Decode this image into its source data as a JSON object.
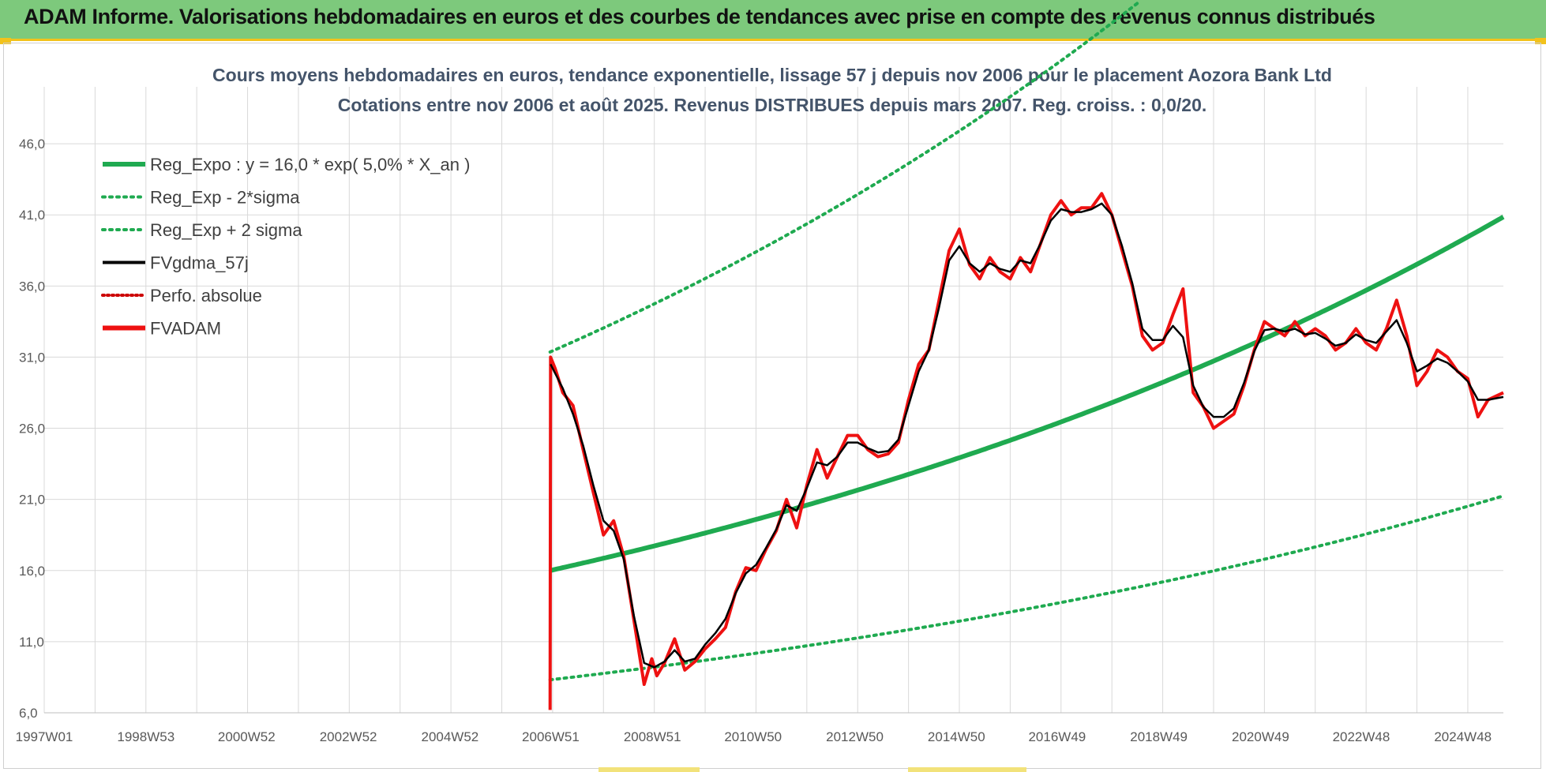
{
  "header": {
    "title": "ADAM Informe. Valorisations hebdomadaires en euros et des courbes de tendances avec prise en compte des revenus connus distribués"
  },
  "colors": {
    "banner": "#7dc97c",
    "accent": "#f2c21b",
    "reg_expo": "#1faa50",
    "fvgdma": "#000000",
    "fvadam": "#ee1111",
    "perfo": "#cc0000",
    "grid": "#d9d9d9"
  },
  "chart_data": {
    "type": "line",
    "subtitle_line1": "Cours moyens hebdomadaires en euros, tendance exponentielle, lissage 57 j depuis nov 2006 pour le placement Aozora Bank Ltd",
    "subtitle_line2": "Cotations entre nov 2006 et août 2025. Revenus DISTRIBUES depuis mars 2007. Reg. croiss. : 0,0/20.",
    "ylim": [
      6,
      50
    ],
    "y_ticks": [
      "6,0",
      "11,0",
      "16,0",
      "21,0",
      "26,0",
      "31,0",
      "36,0",
      "41,0",
      "46,0"
    ],
    "x_ticks": [
      "1997W01",
      "1998W53",
      "2000W52",
      "2002W52",
      "2004W52",
      "2006W51",
      "2008W51",
      "2010W50",
      "2012W50",
      "2014W50",
      "2016W49",
      "2018W49",
      "2020W49",
      "2022W48",
      "2024W48"
    ],
    "x_range": [
      1997.0,
      2025.7
    ],
    "grid": true,
    "legend_position": "top-left",
    "legend": [
      {
        "label": "Reg_Expo : y = 16,0 * exp( 5,0% *  X_an )",
        "color": "#1faa50",
        "style": "solid-thick"
      },
      {
        "label": "Reg_Exp - 2*sigma",
        "color": "#1faa50",
        "style": "dotted"
      },
      {
        "label": "Reg_Exp + 2 sigma",
        "color": "#1faa50",
        "style": "dotted"
      },
      {
        "label": "FVgdma_57j",
        "color": "#000000",
        "style": "solid"
      },
      {
        "label": "Perfo. absolue",
        "color": "#cc0000",
        "style": "dotted"
      },
      {
        "label": "FVADAM",
        "color": "#ee1111",
        "style": "solid-thick"
      }
    ],
    "regression": {
      "start_year": 2006.95,
      "end_year": 2025.7,
      "a": 16.0,
      "rate": 0.05,
      "lower_factor": 0.52,
      "upper_factor": 1.96
    },
    "series": [
      {
        "name": "FVADAM",
        "x": [
          2006.95,
          2006.96,
          2007.05,
          2007.2,
          2007.4,
          2007.6,
          2007.8,
          2008.0,
          2008.2,
          2008.4,
          2008.6,
          2008.8,
          2008.95,
          2009.05,
          2009.2,
          2009.4,
          2009.6,
          2009.8,
          2010.0,
          2010.2,
          2010.4,
          2010.6,
          2010.8,
          2011.0,
          2011.2,
          2011.4,
          2011.6,
          2011.8,
          2012.0,
          2012.2,
          2012.4,
          2012.6,
          2012.8,
          2013.0,
          2013.2,
          2013.4,
          2013.6,
          2013.8,
          2014.0,
          2014.2,
          2014.4,
          2014.6,
          2014.8,
          2015.0,
          2015.2,
          2015.4,
          2015.6,
          2015.8,
          2016.0,
          2016.2,
          2016.4,
          2016.6,
          2016.8,
          2017.0,
          2017.2,
          2017.4,
          2017.6,
          2017.8,
          2018.0,
          2018.2,
          2018.4,
          2018.6,
          2018.8,
          2019.0,
          2019.2,
          2019.4,
          2019.6,
          2019.8,
          2020.0,
          2020.2,
          2020.4,
          2020.6,
          2020.8,
          2021.0,
          2021.2,
          2021.4,
          2021.6,
          2021.8,
          2022.0,
          2022.2,
          2022.4,
          2022.6,
          2022.8,
          2023.0,
          2023.2,
          2023.4,
          2023.6,
          2023.8,
          2024.0,
          2024.2,
          2024.4,
          2024.6,
          2024.8,
          2025.0,
          2025.2,
          2025.4,
          2025.7
        ],
        "y": [
          6.2,
          31.0,
          30.2,
          28.5,
          27.6,
          24.5,
          21.5,
          18.5,
          19.5,
          17.0,
          12.5,
          8.0,
          9.8,
          8.6,
          9.5,
          11.2,
          9.0,
          9.6,
          10.5,
          11.2,
          12.0,
          14.5,
          16.2,
          16.0,
          17.5,
          18.8,
          21.0,
          19.0,
          22.0,
          24.5,
          22.5,
          24.0,
          25.5,
          25.5,
          24.5,
          24.0,
          24.2,
          25.0,
          28.0,
          30.5,
          31.5,
          35.0,
          38.5,
          40.0,
          37.5,
          36.5,
          38.0,
          37.0,
          36.5,
          38.0,
          37.0,
          39.0,
          41.0,
          42.0,
          41.0,
          41.5,
          41.5,
          42.5,
          41.0,
          38.5,
          36.0,
          32.5,
          31.5,
          32.0,
          34.0,
          35.8,
          28.5,
          27.5,
          26.0,
          26.5,
          27.0,
          29.0,
          31.5,
          33.5,
          33.0,
          32.5,
          33.5,
          32.5,
          33.0,
          32.5,
          31.5,
          32.0,
          33.0,
          32.0,
          31.5,
          33.0,
          35.0,
          32.5,
          29.0,
          30.0,
          31.5,
          31.0,
          30.0,
          29.5,
          26.8,
          28.0,
          28.5
        ]
      },
      {
        "name": "FVgdma_57j",
        "x": [
          2006.96,
          2007.2,
          2007.4,
          2007.6,
          2007.8,
          2008.0,
          2008.2,
          2008.4,
          2008.6,
          2008.8,
          2009.0,
          2009.2,
          2009.4,
          2009.6,
          2009.8,
          2010.0,
          2010.2,
          2010.4,
          2010.6,
          2010.8,
          2011.0,
          2011.2,
          2011.4,
          2011.6,
          2011.8,
          2012.0,
          2012.2,
          2012.4,
          2012.6,
          2012.8,
          2013.0,
          2013.2,
          2013.4,
          2013.6,
          2013.8,
          2014.0,
          2014.2,
          2014.4,
          2014.6,
          2014.8,
          2015.0,
          2015.2,
          2015.4,
          2015.6,
          2015.8,
          2016.0,
          2016.2,
          2016.4,
          2016.6,
          2016.8,
          2017.0,
          2017.2,
          2017.4,
          2017.6,
          2017.8,
          2018.0,
          2018.2,
          2018.4,
          2018.6,
          2018.8,
          2019.0,
          2019.2,
          2019.4,
          2019.6,
          2019.8,
          2020.0,
          2020.2,
          2020.4,
          2020.6,
          2020.8,
          2021.0,
          2021.2,
          2021.4,
          2021.6,
          2021.8,
          2022.0,
          2022.2,
          2022.4,
          2022.6,
          2022.8,
          2023.0,
          2023.2,
          2023.4,
          2023.6,
          2023.8,
          2024.0,
          2024.2,
          2024.4,
          2024.6,
          2024.8,
          2025.0,
          2025.2,
          2025.4,
          2025.7
        ],
        "y": [
          30.5,
          28.8,
          27.0,
          24.8,
          22.0,
          19.5,
          18.8,
          16.8,
          12.8,
          9.5,
          9.2,
          9.6,
          10.4,
          9.6,
          9.8,
          10.8,
          11.6,
          12.6,
          14.4,
          15.8,
          16.4,
          17.6,
          18.9,
          20.6,
          20.2,
          21.8,
          23.6,
          23.4,
          24.0,
          25.0,
          25.0,
          24.6,
          24.3,
          24.4,
          25.2,
          27.6,
          30.0,
          31.5,
          34.5,
          37.8,
          38.8,
          37.6,
          37.0,
          37.6,
          37.2,
          37.0,
          37.8,
          37.6,
          39.0,
          40.6,
          41.4,
          41.2,
          41.2,
          41.4,
          41.8,
          41.0,
          38.8,
          36.2,
          33.0,
          32.2,
          32.2,
          33.2,
          32.4,
          29.0,
          27.5,
          26.8,
          26.8,
          27.4,
          29.2,
          31.4,
          32.9,
          33.0,
          32.8,
          33.0,
          32.6,
          32.7,
          32.3,
          31.8,
          32.0,
          32.6,
          32.2,
          32.0,
          32.8,
          33.6,
          32.0,
          30.0,
          30.4,
          30.9,
          30.6,
          30.0,
          29.3,
          28.0,
          28.0,
          28.2
        ]
      }
    ]
  }
}
